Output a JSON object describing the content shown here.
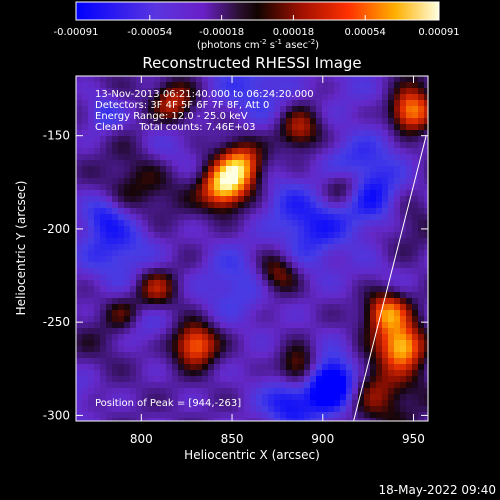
{
  "colorbar": {
    "tick_labels": [
      "-0.00091",
      "-0.00054",
      "-0.00018",
      "0.00018",
      "0.00054",
      "0.00091"
    ],
    "units_prefix": "(photons cm",
    "units_sup1": "-2",
    "units_mid": " s",
    "units_sup2": "-1",
    "units_mid2": " asec",
    "units_sup3": "-2",
    "units_suffix": ")",
    "range": [
      -0.00091,
      0.00091
    ]
  },
  "header": {
    "title": "Reconstructed RHESSI Image",
    "info_lines": [
      "13-Nov-2013 06:21:40.000 to 06:24:20.000",
      "Detectors: 3F 4F 5F 6F 7F 8F, Att 0",
      "Energy Range: 12.0 - 25.0 keV",
      "Clean     Total counts: 7.46E+03"
    ],
    "peak_label": "Position of Peak = [944,-263]"
  },
  "footer": {
    "timestamp": "18-May-2022 09:40"
  },
  "chart_data": {
    "type": "heatmap",
    "title": "Reconstructed RHESSI Image",
    "xlabel": "Heliocentric X (arcsec)",
    "ylabel": "Heliocentric Y (arcsec)",
    "xlim": [
      764,
      958
    ],
    "ylim": [
      -303,
      -118
    ],
    "x_ticks": [
      800,
      850,
      900,
      950
    ],
    "y_ticks": [
      -150,
      -200,
      -250,
      -300
    ],
    "x_tick_labels": [
      "800",
      "850",
      "900",
      "950"
    ],
    "y_tick_labels": [
      "-150",
      "-200",
      "-250",
      "-300"
    ],
    "peak": {
      "x": 944,
      "y": -263
    },
    "limb_line": [
      [
        917,
        -303
      ],
      [
        957,
        -150
      ]
    ],
    "bright_sources": [
      {
        "x": 944,
        "y": -263,
        "relative_intensity": 1.0
      },
      {
        "x": 935,
        "y": -245,
        "relative_intensity": 0.75
      },
      {
        "x": 948,
        "y": -137,
        "relative_intensity": 0.85
      },
      {
        "x": 845,
        "y": -178,
        "relative_intensity": 0.8
      },
      {
        "x": 855,
        "y": -166,
        "relative_intensity": 0.7
      },
      {
        "x": 830,
        "y": -262,
        "relative_intensity": 0.8
      },
      {
        "x": 818,
        "y": -132,
        "relative_intensity": 0.55
      },
      {
        "x": 887,
        "y": -147,
        "relative_intensity": 0.55
      },
      {
        "x": 912,
        "y": -175,
        "relative_intensity": 0.6
      },
      {
        "x": 808,
        "y": -232,
        "relative_intensity": 0.5
      },
      {
        "x": 887,
        "y": -274,
        "relative_intensity": 0.5
      },
      {
        "x": 875,
        "y": -224,
        "relative_intensity": 0.5
      }
    ]
  }
}
